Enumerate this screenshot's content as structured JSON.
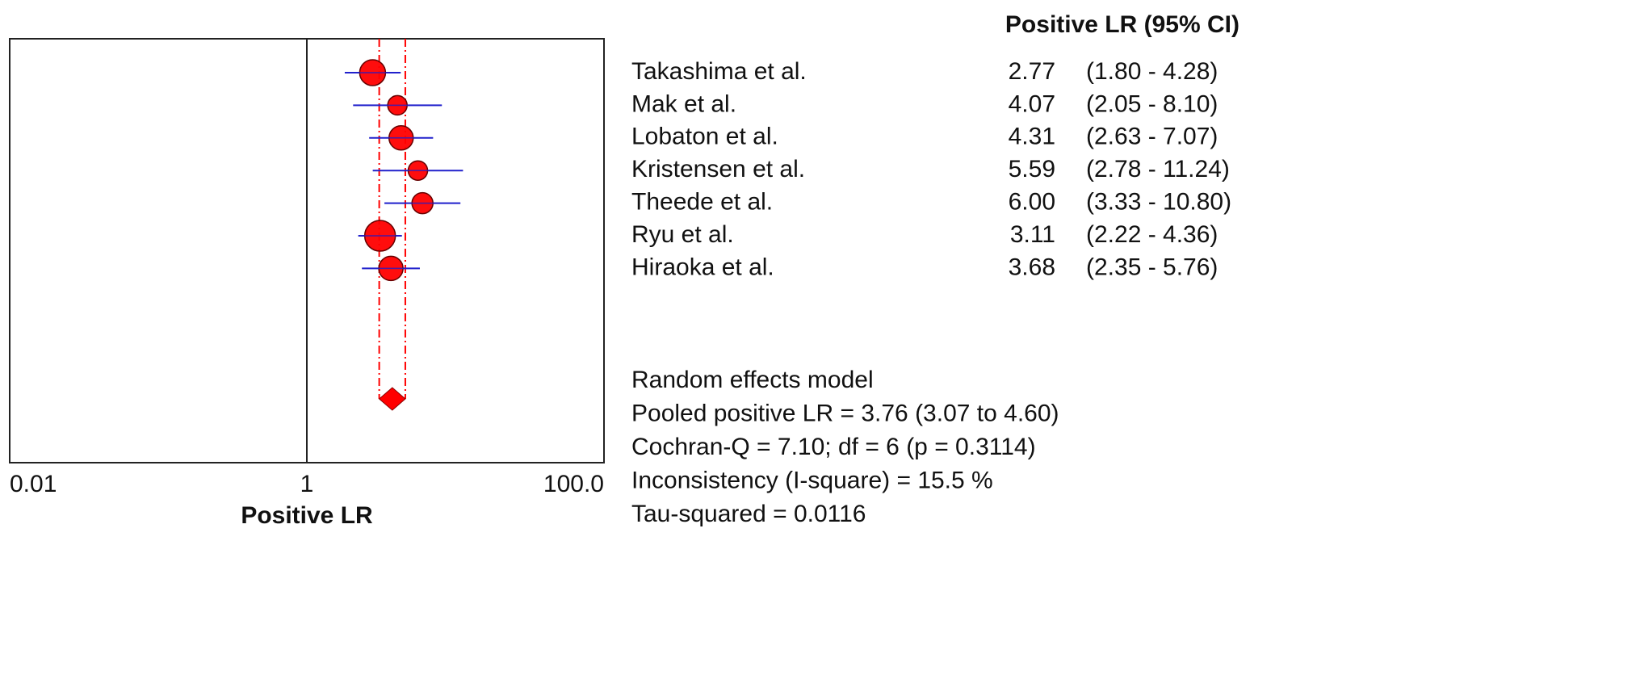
{
  "chart_data": {
    "type": "forest",
    "header": "Positive LR (95% CI)",
    "xlabel": "Positive LR",
    "log_scale": true,
    "xlim": [
      0.01,
      100
    ],
    "xticks": [
      0.01,
      1,
      {
        "value": 100,
        "label": "100.0"
      }
    ],
    "categories": [
      "Takashima et al.",
      "Mak et al.",
      "Lobaton et al.",
      "Kristensen et al.",
      "Theede et al.",
      "Ryu et al.",
      "Hiraoka et al."
    ],
    "values": [
      2.77,
      4.07,
      4.31,
      5.59,
      6.0,
      3.11,
      3.68
    ],
    "value_labels": [
      "2.77",
      "4.07",
      "4.31",
      "5.59",
      "6.00",
      "3.11",
      "3.68"
    ],
    "lower": [
      1.8,
      2.05,
      2.63,
      2.78,
      3.33,
      2.22,
      2.35
    ],
    "upper": [
      4.28,
      8.1,
      7.07,
      11.24,
      10.8,
      4.36,
      5.76
    ],
    "ci_labels": [
      "(1.80 - 4.28)",
      "(2.05 - 8.10)",
      "(2.63 - 7.07)",
      "(2.78 - 11.24)",
      "(3.33 - 10.80)",
      "(2.22 - 4.36)",
      "(2.35 - 5.76)"
    ],
    "weights": [
      16,
      12,
      15,
      12,
      13,
      19,
      15
    ],
    "marker_color": "#ff0000",
    "ci_color": "#2222cc",
    "pooled": {
      "value": 3.76,
      "lower": 3.07,
      "upper": 4.6,
      "color": "#ff0000"
    },
    "summary_lines": [
      "Random effects model",
      "Pooled positive LR = 3.76 (3.07 to 4.60)",
      "Cochran-Q = 7.10; df = 6 (p = 0.3114)",
      "Inconsistency (I-square) = 15.5 %",
      "Tau-squared = 0.0116"
    ]
  }
}
